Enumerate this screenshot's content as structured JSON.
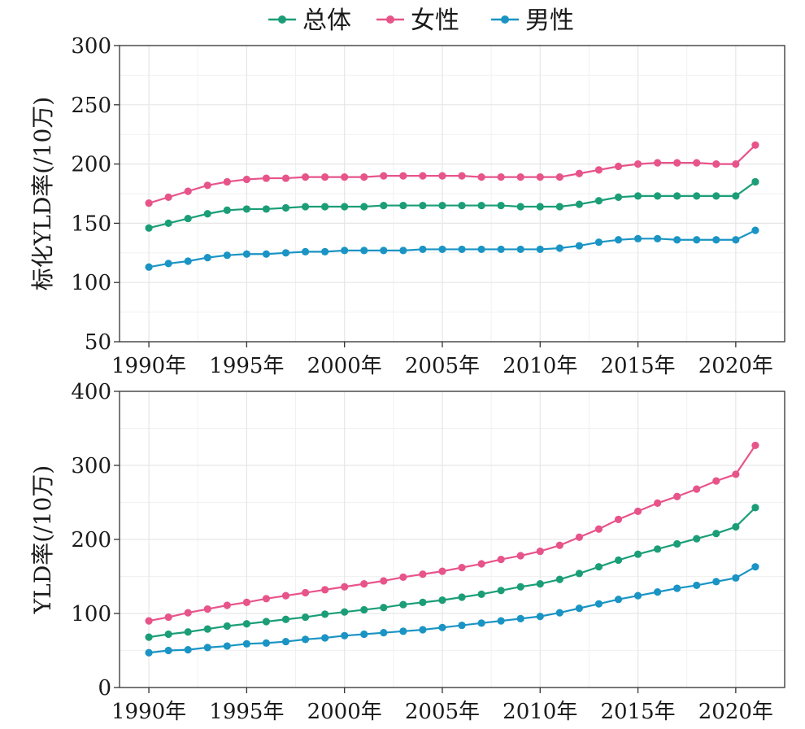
{
  "legend": [
    {
      "name": "总体",
      "color": "#1b9e77"
    },
    {
      "name": "女性",
      "color": "#e7548a"
    },
    {
      "name": "男性",
      "color": "#1a94c4"
    }
  ],
  "chart_data": [
    {
      "type": "line",
      "ylabel": "标化YLD率(/10万)",
      "xlabel": "",
      "ylim": [
        50,
        300
      ],
      "yticks": [
        50,
        100,
        150,
        200,
        250,
        300
      ],
      "x": [
        1990,
        1991,
        1992,
        1993,
        1994,
        1995,
        1996,
        1997,
        1998,
        1999,
        2000,
        2001,
        2002,
        2003,
        2004,
        2005,
        2006,
        2007,
        2008,
        2009,
        2010,
        2011,
        2012,
        2013,
        2014,
        2015,
        2016,
        2017,
        2018,
        2019,
        2020,
        2021
      ],
      "xticks": [
        1990,
        1995,
        2000,
        2005,
        2010,
        2015,
        2020
      ],
      "xtick_labels": [
        "1990年",
        "1995年",
        "2000年",
        "2005年",
        "2010年",
        "2015年",
        "2020年"
      ],
      "grid": true,
      "series": [
        {
          "name": "总体",
          "values": [
            146,
            150,
            154,
            158,
            161,
            162,
            162,
            163,
            164,
            164,
            164,
            164,
            165,
            165,
            165,
            165,
            165,
            165,
            165,
            164,
            164,
            164,
            166,
            169,
            172,
            173,
            173,
            173,
            173,
            173,
            173,
            185
          ]
        },
        {
          "name": "女性",
          "values": [
            167,
            172,
            177,
            182,
            185,
            187,
            188,
            188,
            189,
            189,
            189,
            189,
            190,
            190,
            190,
            190,
            190,
            189,
            189,
            189,
            189,
            189,
            192,
            195,
            198,
            200,
            201,
            201,
            201,
            200,
            200,
            216
          ]
        },
        {
          "name": "男性",
          "values": [
            113,
            116,
            118,
            121,
            123,
            124,
            124,
            125,
            126,
            126,
            127,
            127,
            127,
            127,
            128,
            128,
            128,
            128,
            128,
            128,
            128,
            129,
            131,
            134,
            136,
            137,
            137,
            136,
            136,
            136,
            136,
            144
          ]
        }
      ]
    },
    {
      "type": "line",
      "ylabel": "YLD率(/10万)",
      "xlabel": "",
      "ylim": [
        0,
        400
      ],
      "yticks": [
        0,
        100,
        200,
        300,
        400
      ],
      "x": [
        1990,
        1991,
        1992,
        1993,
        1994,
        1995,
        1996,
        1997,
        1998,
        1999,
        2000,
        2001,
        2002,
        2003,
        2004,
        2005,
        2006,
        2007,
        2008,
        2009,
        2010,
        2011,
        2012,
        2013,
        2014,
        2015,
        2016,
        2017,
        2018,
        2019,
        2020,
        2021
      ],
      "xticks": [
        1990,
        1995,
        2000,
        2005,
        2010,
        2015,
        2020
      ],
      "xtick_labels": [
        "1990年",
        "1995年",
        "2000年",
        "2005年",
        "2010年",
        "2015年",
        "2020年"
      ],
      "grid": true,
      "series": [
        {
          "name": "总体",
          "values": [
            68,
            72,
            75,
            79,
            83,
            86,
            89,
            92,
            95,
            99,
            102,
            105,
            108,
            112,
            115,
            118,
            122,
            126,
            131,
            136,
            140,
            146,
            154,
            163,
            172,
            180,
            187,
            194,
            201,
            208,
            217,
            243
          ]
        },
        {
          "name": "女性",
          "values": [
            90,
            95,
            101,
            106,
            111,
            115,
            120,
            124,
            128,
            132,
            136,
            140,
            144,
            149,
            153,
            157,
            162,
            167,
            173,
            178,
            184,
            192,
            203,
            214,
            227,
            238,
            249,
            258,
            268,
            279,
            288,
            327
          ]
        },
        {
          "name": "男性",
          "values": [
            47,
            50,
            51,
            54,
            56,
            59,
            60,
            62,
            65,
            67,
            70,
            72,
            74,
            76,
            78,
            81,
            84,
            87,
            90,
            93,
            96,
            101,
            107,
            113,
            119,
            124,
            129,
            134,
            138,
            143,
            148,
            163
          ]
        }
      ]
    }
  ]
}
